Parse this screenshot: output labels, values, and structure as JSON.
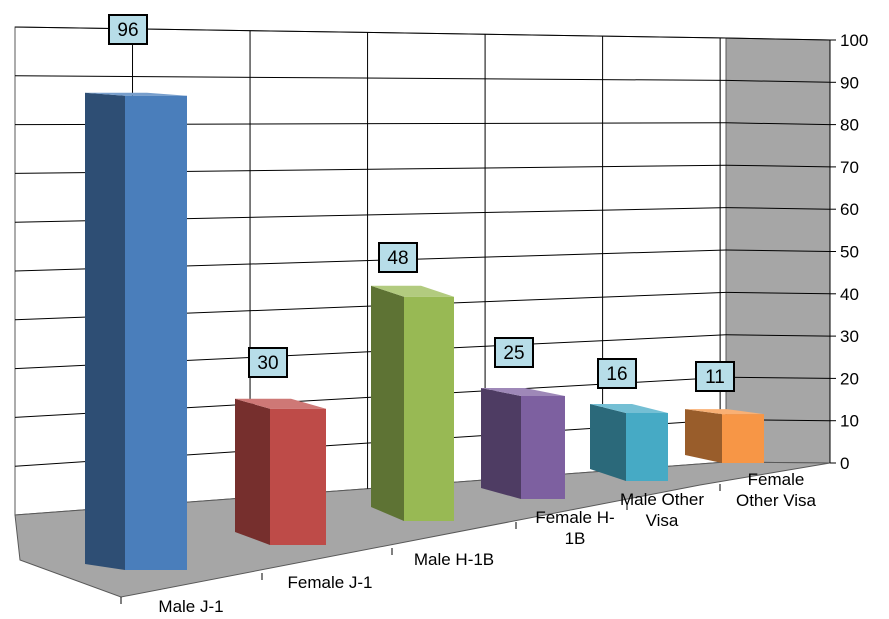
{
  "chart_data": {
    "type": "bar",
    "title": "",
    "xlabel": "",
    "ylabel": "",
    "categories": [
      "Male J-1",
      "Female J-1",
      "Male H-1B",
      "Female H-1B",
      "Male Other Visa",
      "Female Other Visa"
    ],
    "category_label_lines": [
      [
        "Male J-1"
      ],
      [
        "Female J-1"
      ],
      [
        "Male H-1B"
      ],
      [
        "Female H-",
        "1B"
      ],
      [
        "Male Other",
        "Visa"
      ],
      [
        "Female",
        "Other Visa"
      ]
    ],
    "values": [
      96,
      30,
      48,
      25,
      16,
      11
    ],
    "data_labels": [
      "96",
      "30",
      "48",
      "25",
      "16",
      "11"
    ],
    "ylim": [
      0,
      100
    ],
    "y_ticks": [
      "0",
      "10",
      "20",
      "30",
      "40",
      "50",
      "60",
      "70",
      "80",
      "90",
      "100"
    ],
    "grid": true,
    "legend": "none",
    "style": "3d-column",
    "colors": {
      "bars": [
        "#4a7ebb",
        "#be4b48",
        "#98b954",
        "#7d60a0",
        "#46aac5",
        "#f79646"
      ],
      "floor": "#a6a6a6",
      "side_wall": "#a6a6a6",
      "back_wall": "#ffffff",
      "label_box": "#b7dde8"
    }
  }
}
